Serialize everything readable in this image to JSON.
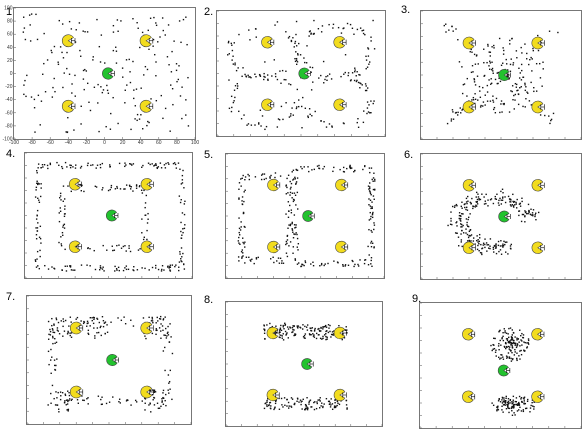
{
  "panels": [
    {
      "label": "1.",
      "pattern": "random",
      "seed": 11
    },
    {
      "label": "2.",
      "pattern": "loops",
      "seed": 23
    },
    {
      "label": "3.",
      "pattern": "center-cross",
      "seed": 37
    },
    {
      "label": "4.",
      "pattern": "spiral-rect",
      "seed": 41
    },
    {
      "label": "5.",
      "pattern": "two-rooms",
      "seed": 53
    },
    {
      "label": "6.",
      "pattern": "left-blob",
      "seed": 67
    },
    {
      "label": "7.",
      "pattern": "rect-corners",
      "seed": 71
    },
    {
      "label": "8.",
      "pattern": "top-bottom-bands",
      "seed": 83
    },
    {
      "label": "9.",
      "pattern": "two-clusters",
      "seed": 97
    }
  ],
  "axes": {
    "x_ticks": [
      "-100",
      "-80",
      "-60",
      "-40",
      "-20",
      "0",
      "20",
      "40",
      "60",
      "80",
      "100"
    ],
    "y_ticks": [
      "100",
      "80",
      "60",
      "40",
      "20",
      "0",
      "-20",
      "-40",
      "-60",
      "-80",
      "-100"
    ]
  },
  "colors": {
    "yellow_marker": "#f2dc1e",
    "green_marker": "#22c22e",
    "dots": "#111111",
    "frame": "#777777"
  },
  "icons": {
    "corner_marker": "yellow-pacman-icon",
    "center_marker": "green-pacman-icon"
  }
}
